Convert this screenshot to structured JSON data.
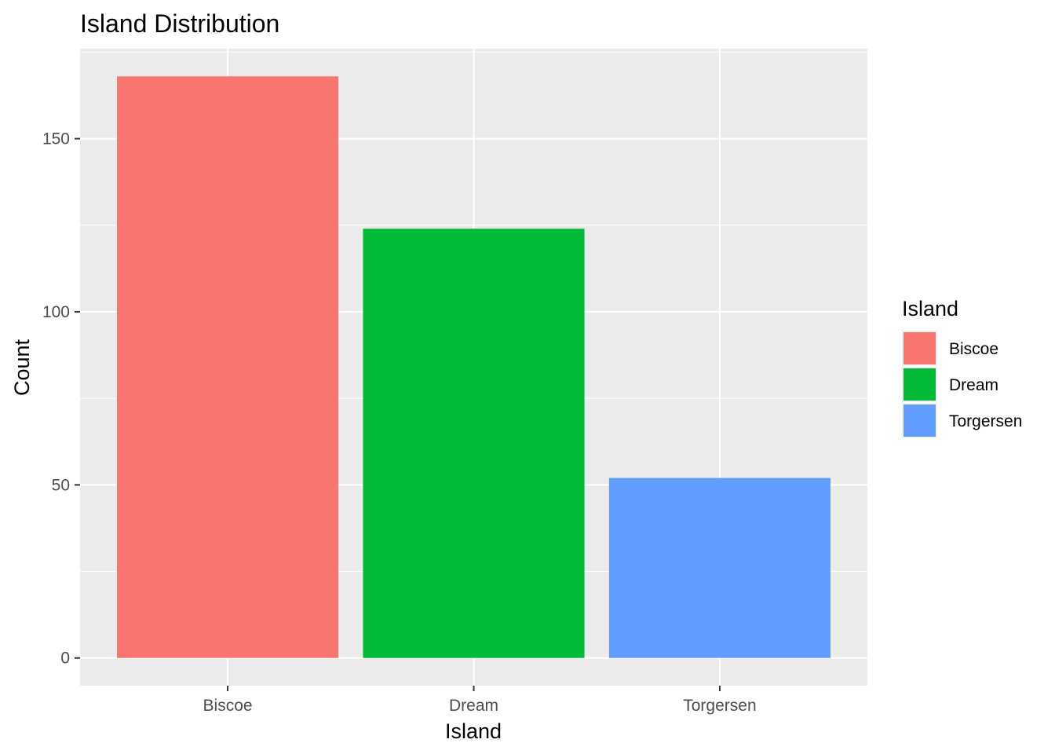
{
  "chart_data": {
    "type": "bar",
    "title": "Island Distribution",
    "xlabel": "Island",
    "ylabel": "Count",
    "categories": [
      "Biscoe",
      "Dream",
      "Torgersen"
    ],
    "values": [
      168,
      124,
      52
    ],
    "ylim": [
      -8,
      176
    ],
    "yticks": [
      0,
      50,
      100,
      150
    ],
    "grid": true,
    "legend": {
      "title": "Island",
      "placement": "right",
      "items": [
        "Biscoe",
        "Dream",
        "Torgersen"
      ]
    },
    "colors": [
      "#F8766D",
      "#00BA38",
      "#619CFF"
    ],
    "panel_background": "#EBEBEB",
    "grid_color": "#FFFFFF"
  }
}
